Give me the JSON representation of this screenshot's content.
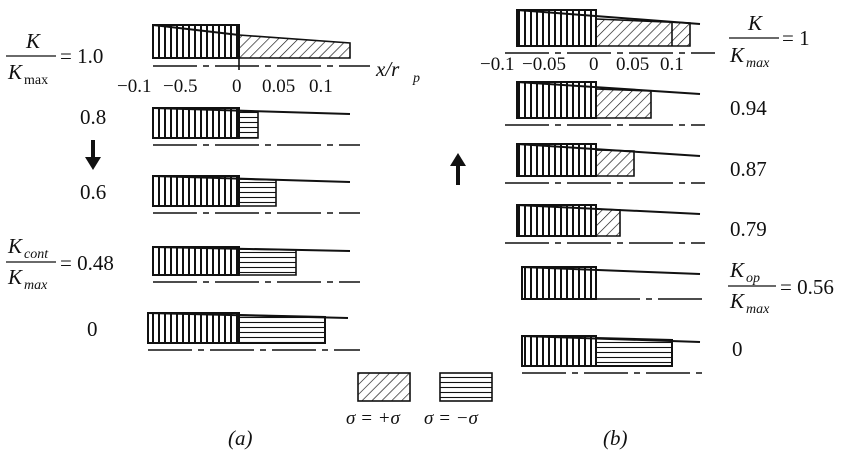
{
  "panel_a": {
    "caption": "(a)",
    "ratio_top": {
      "num": "K",
      "den_base": "K",
      "den_sub": "max",
      "equals": "= 1.0"
    },
    "axis_ticks": [
      "−0.1",
      "−0.5",
      "0",
      "0.05",
      "0.1"
    ],
    "axis_label": {
      "base": "x/r",
      "sub": "p"
    },
    "row_values": [
      "0.8",
      "0.6"
    ],
    "ratio_cont": {
      "num_base": "K",
      "num_sub": "cont",
      "den_base": "K",
      "den_sub": "max",
      "equals": "= 0.48"
    },
    "last_value": "0"
  },
  "panel_b": {
    "caption": "(b)",
    "ratio_top": {
      "num": "K",
      "den_base": "K",
      "den_sub": "max",
      "equals": "= 1"
    },
    "axis_ticks": [
      "−0.1",
      "−0.05",
      "0",
      "0.05",
      "0.1"
    ],
    "row_values": [
      "0.94",
      "0.87",
      "0.79"
    ],
    "ratio_op": {
      "num_base": "K",
      "num_sub": "op",
      "den_base": "K",
      "den_sub": "max",
      "equals": "= 0.56"
    },
    "last_value": "0"
  },
  "legend": {
    "tension": "σ = +σ",
    "compression": "σ = −σ"
  }
}
